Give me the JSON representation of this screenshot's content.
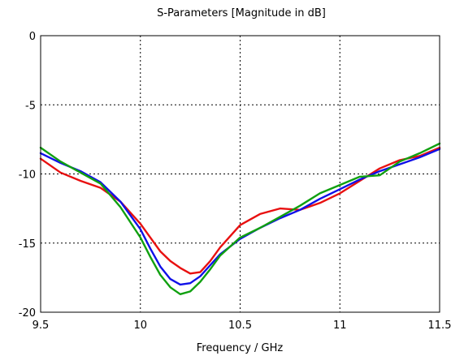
{
  "chart_data": {
    "type": "line",
    "title": "S-Parameters [Magnitude in dB]",
    "xlabel": "Frequency / GHz",
    "ylabel": "",
    "xlim": [
      9.5,
      11.5
    ],
    "ylim": [
      -20,
      0
    ],
    "xticks": [
      9.5,
      10,
      10.5,
      11,
      11.5
    ],
    "yticks": [
      0,
      -5,
      -10,
      -15,
      -20
    ],
    "xtick_labels": [
      "9.5",
      "10",
      "10.5",
      "11",
      "11.5"
    ],
    "ytick_labels": [
      "0",
      "-5",
      "-10",
      "-15",
      "-20"
    ],
    "grid": true,
    "series": [
      {
        "color": "#e81010",
        "x": [
          9.5,
          9.6,
          9.7,
          9.8,
          9.9,
          10.0,
          10.05,
          10.1,
          10.15,
          10.2,
          10.25,
          10.3,
          10.35,
          10.4,
          10.5,
          10.6,
          10.7,
          10.8,
          10.9,
          11.0,
          11.1,
          11.2,
          11.3,
          11.4,
          11.5
        ],
        "y": [
          -8.9,
          -9.9,
          -10.5,
          -11.0,
          -12.0,
          -13.6,
          -14.6,
          -15.6,
          -16.3,
          -16.8,
          -17.2,
          -17.1,
          -16.3,
          -15.3,
          -13.7,
          -12.9,
          -12.5,
          -12.6,
          -12.1,
          -11.4,
          -10.5,
          -9.6,
          -9.0,
          -8.7,
          -8.1
        ]
      },
      {
        "color": "#1010e8",
        "x": [
          9.5,
          9.6,
          9.7,
          9.8,
          9.9,
          10.0,
          10.05,
          10.1,
          10.15,
          10.2,
          10.25,
          10.3,
          10.35,
          10.4,
          10.5,
          10.6,
          10.7,
          10.8,
          10.9,
          11.0,
          11.1,
          11.2,
          11.3,
          11.4,
          11.5
        ],
        "y": [
          -8.5,
          -9.2,
          -9.8,
          -10.6,
          -12.0,
          -14.0,
          -15.4,
          -16.7,
          -17.6,
          -18.0,
          -17.9,
          -17.4,
          -16.6,
          -15.8,
          -14.7,
          -13.9,
          -13.2,
          -12.6,
          -11.8,
          -11.1,
          -10.4,
          -9.8,
          -9.3,
          -8.8,
          -8.2
        ]
      },
      {
        "color": "#10a010",
        "x": [
          9.5,
          9.6,
          9.7,
          9.8,
          9.9,
          10.0,
          10.05,
          10.1,
          10.15,
          10.2,
          10.25,
          10.3,
          10.35,
          10.4,
          10.5,
          10.6,
          10.7,
          10.8,
          10.9,
          11.0,
          11.1,
          11.2,
          11.3,
          11.4,
          11.5
        ],
        "y": [
          -8.1,
          -9.1,
          -9.9,
          -10.7,
          -12.4,
          -14.6,
          -16.0,
          -17.3,
          -18.2,
          -18.7,
          -18.5,
          -17.8,
          -16.9,
          -15.9,
          -14.6,
          -13.9,
          -13.1,
          -12.3,
          -11.4,
          -10.8,
          -10.2,
          -10.1,
          -9.1,
          -8.5,
          -7.8
        ]
      }
    ]
  }
}
